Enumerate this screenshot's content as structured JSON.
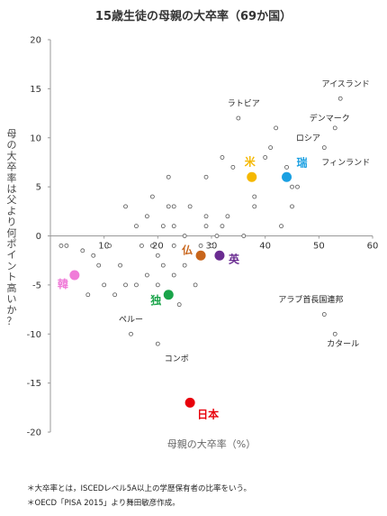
{
  "chart_data": {
    "type": "scatter",
    "title": "15歳生徒の母親の大卒率（69か国）",
    "xlabel": "母親の大卒率（%）",
    "ylabel": "母の大卒率は父より何ポイント高いか？",
    "xlim": [
      0,
      60
    ],
    "ylim": [
      -20,
      20
    ],
    "x_ticks": [
      10,
      20,
      30,
      40,
      50,
      60
    ],
    "y_ticks": [
      -20,
      -15,
      -10,
      -5,
      0,
      5,
      10,
      15,
      20
    ],
    "grid": false,
    "annotations": [
      {
        "text": "ラトビア",
        "x": 36.0,
        "y": 13.5
      },
      {
        "text": "アイスランド",
        "x": 55.0,
        "y": 15.5
      },
      {
        "text": "デンマーク",
        "x": 52.0,
        "y": 12.0
      },
      {
        "text": "ロシア",
        "x": 48.0,
        "y": 10.0
      },
      {
        "text": "フィンランド",
        "x": 55.0,
        "y": 7.5
      },
      {
        "text": "アラブ首長国連邦",
        "x": 48.5,
        "y": -6.5
      },
      {
        "text": "ペルー",
        "x": 15.0,
        "y": -8.5
      },
      {
        "text": "コンボ",
        "x": 23.5,
        "y": -12.5
      },
      {
        "text": "カタール",
        "x": 54.5,
        "y": -11.0
      }
    ],
    "highlights": [
      {
        "label": "米",
        "x": 37.5,
        "y": 6.0,
        "color": "#f5b800"
      },
      {
        "label": "瑞",
        "x": 44.0,
        "y": 6.0,
        "color": "#1ba0e2"
      },
      {
        "label": "仏",
        "x": 28.0,
        "y": -2.0,
        "color": "#c8651b"
      },
      {
        "label": "英",
        "x": 31.5,
        "y": -2.0,
        "color": "#6a2c91"
      },
      {
        "label": "独",
        "x": 22.0,
        "y": -6.0,
        "color": "#1aa44a"
      },
      {
        "label": "韓",
        "x": 4.5,
        "y": -4.0,
        "color": "#f07cd8"
      },
      {
        "label": "日本",
        "x": 26.0,
        "y": -17.0,
        "color": "#e8000b"
      }
    ],
    "points": [
      [
        2,
        -1
      ],
      [
        3,
        -1
      ],
      [
        6,
        -1.5
      ],
      [
        7,
        -6
      ],
      [
        8,
        -2
      ],
      [
        9,
        -3
      ],
      [
        10,
        -5
      ],
      [
        11,
        -1
      ],
      [
        12,
        -6
      ],
      [
        13,
        -3
      ],
      [
        14,
        -5
      ],
      [
        14,
        3
      ],
      [
        15,
        -10
      ],
      [
        16,
        1
      ],
      [
        16,
        -5
      ],
      [
        17,
        -1
      ],
      [
        18,
        2
      ],
      [
        18,
        -4
      ],
      [
        19,
        4
      ],
      [
        19,
        -1
      ],
      [
        20,
        -2
      ],
      [
        20,
        -11
      ],
      [
        20,
        -5
      ],
      [
        21,
        1
      ],
      [
        21,
        -3
      ],
      [
        22,
        6
      ],
      [
        22,
        3
      ],
      [
        23,
        3
      ],
      [
        23,
        1
      ],
      [
        23,
        -1
      ],
      [
        23,
        -4
      ],
      [
        24,
        -7
      ],
      [
        25,
        0
      ],
      [
        25,
        -3
      ],
      [
        26,
        3
      ],
      [
        27,
        -5
      ],
      [
        28,
        -1
      ],
      [
        29,
        2
      ],
      [
        29,
        1
      ],
      [
        29,
        6
      ],
      [
        30,
        -1
      ],
      [
        31,
        0
      ],
      [
        32,
        1
      ],
      [
        32,
        8
      ],
      [
        33,
        2
      ],
      [
        34,
        7
      ],
      [
        35,
        12
      ],
      [
        36,
        0
      ],
      [
        38,
        3
      ],
      [
        38,
        4
      ],
      [
        40,
        8
      ],
      [
        41,
        9
      ],
      [
        42,
        11
      ],
      [
        43,
        1
      ],
      [
        44,
        7
      ],
      [
        45,
        3
      ],
      [
        45,
        5
      ],
      [
        46,
        5
      ],
      [
        51,
        -8
      ],
      [
        51,
        9
      ],
      [
        53,
        -10
      ],
      [
        53,
        11
      ],
      [
        54,
        14
      ]
    ],
    "notes": [
      "＊大卒率とは，ISCEDレベル5A以上の学歴保有者の比率をいう。",
      "＊OECD「PISA 2015」より舞田敏彦作成。"
    ]
  }
}
